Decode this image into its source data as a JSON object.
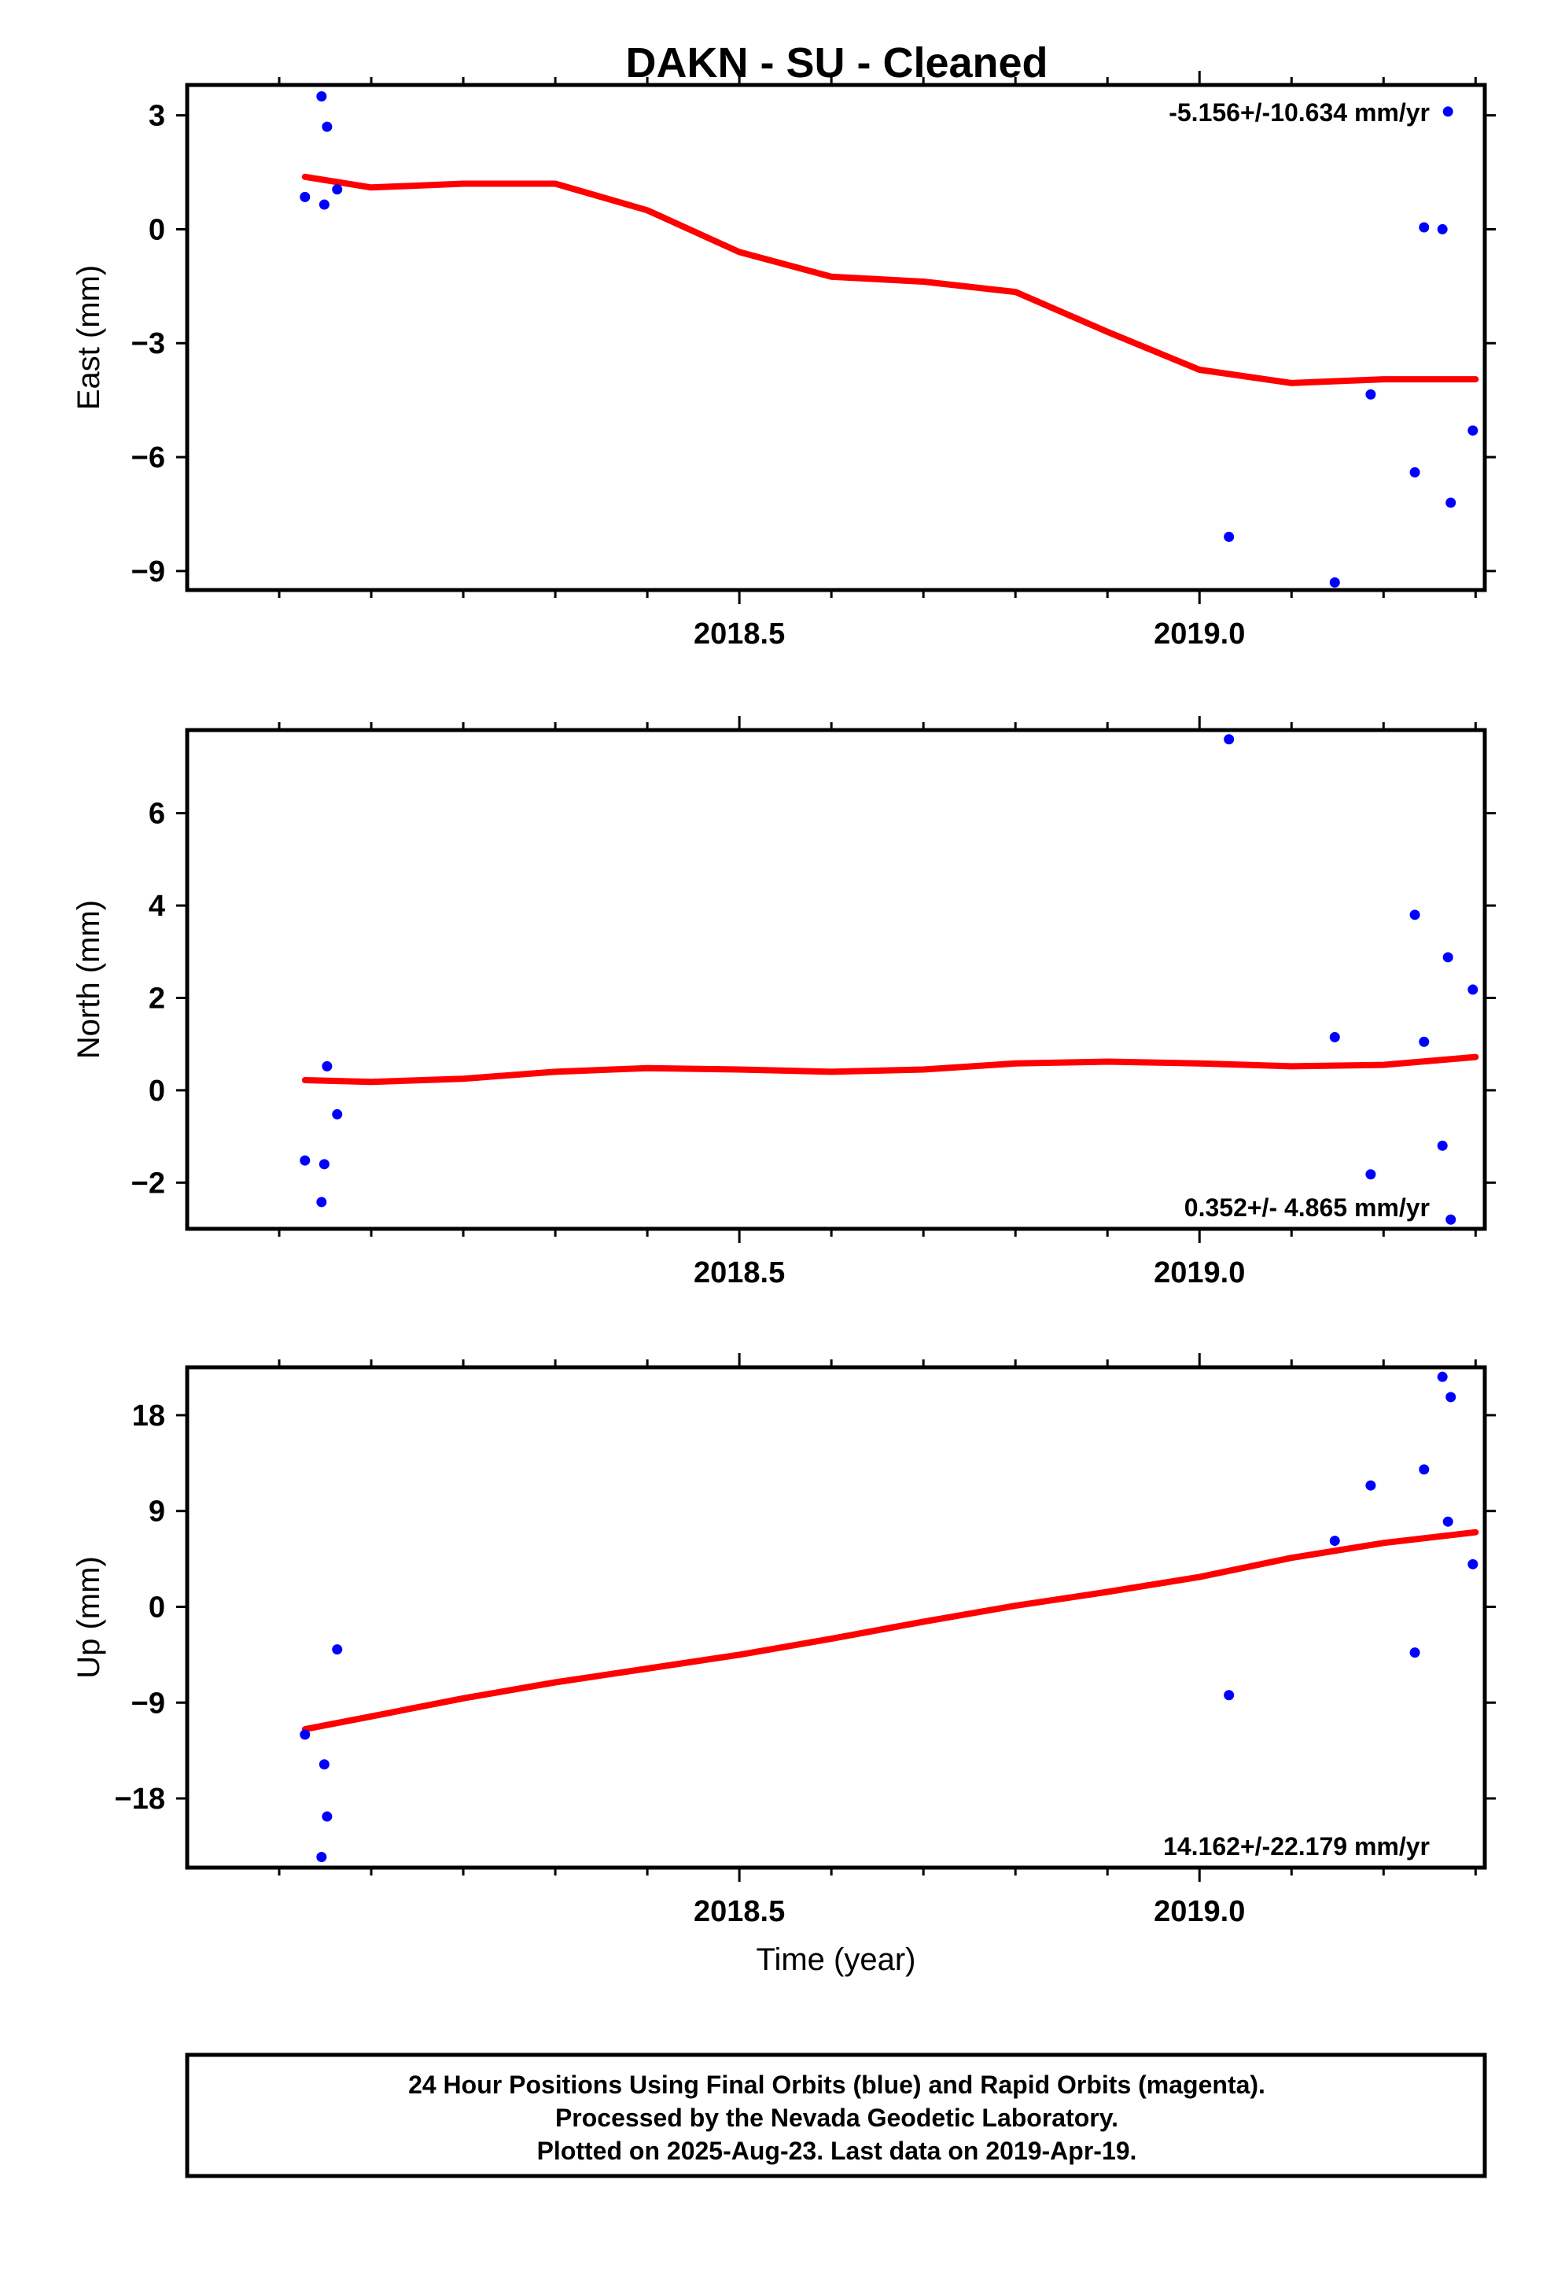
{
  "title": "DAKN  - SU - Cleaned",
  "colors": {
    "data_points": "#0000ff",
    "fit_line": "#ff0000",
    "frame": "#000000"
  },
  "chart_data": [
    {
      "type": "scatter",
      "panel": "east",
      "ylabel": "East (mm)",
      "xlabel": "",
      "xlim": [
        2017.9,
        2019.31
      ],
      "ylim": [
        -9.5,
        3.8
      ],
      "yticks": [
        3,
        0,
        -3,
        -6,
        -9
      ],
      "ytick_labels": [
        "3",
        "0",
        "−3",
        "−6",
        "−9"
      ],
      "xticks": [
        2018.5,
        2019.0
      ],
      "xtick_labels": [
        "2018.5",
        "2019.0"
      ],
      "grid": false,
      "rate_text": "-5.156+/-10.634 mm/yr",
      "rate_position": "top-right",
      "points": {
        "x": [
          2018.028,
          2018.046,
          2018.049,
          2018.052,
          2018.063,
          2019.032,
          2019.147,
          2019.186,
          2019.234,
          2019.244,
          2019.264,
          2019.27,
          2019.273,
          2019.297
        ],
        "y": [
          0.85,
          3.5,
          0.65,
          2.7,
          1.05,
          -8.1,
          -9.3,
          -4.35,
          -6.4,
          0.05,
          0.0,
          3.1,
          -7.2,
          -5.3
        ]
      },
      "fit": {
        "x": [
          2018.028,
          2018.1,
          2018.2,
          2018.3,
          2018.4,
          2018.5,
          2018.6,
          2018.7,
          2018.8,
          2018.9,
          2019.0,
          2019.1,
          2019.2,
          2019.3
        ],
        "y": [
          1.38,
          1.1,
          1.2,
          1.2,
          0.5,
          -0.6,
          -1.25,
          -1.38,
          -1.65,
          -2.7,
          -3.7,
          -4.05,
          -3.95,
          -3.95
        ]
      }
    },
    {
      "type": "scatter",
      "panel": "north",
      "ylabel": "North (mm)",
      "xlabel": "",
      "xlim": [
        2017.9,
        2019.31
      ],
      "ylim": [
        -3.0,
        7.8
      ],
      "yticks": [
        6,
        4,
        2,
        0,
        -2
      ],
      "ytick_labels": [
        "6",
        "4",
        "2",
        "0",
        "−2"
      ],
      "xticks": [
        2018.5,
        2019.0
      ],
      "xtick_labels": [
        "2018.5",
        "2019.0"
      ],
      "grid": false,
      "rate_text": "0.352+/- 4.865 mm/yr",
      "rate_position": "bottom-right",
      "points": {
        "x": [
          2018.028,
          2018.046,
          2018.049,
          2018.052,
          2018.063,
          2019.032,
          2019.147,
          2019.186,
          2019.234,
          2019.244,
          2019.264,
          2019.27,
          2019.273,
          2019.297
        ],
        "y": [
          -1.52,
          -2.42,
          -1.6,
          0.52,
          -0.52,
          7.6,
          1.15,
          -1.82,
          3.8,
          1.05,
          -1.2,
          2.88,
          -2.8,
          2.18
        ]
      },
      "fit": {
        "x": [
          2018.028,
          2018.1,
          2018.2,
          2018.3,
          2018.4,
          2018.5,
          2018.6,
          2018.7,
          2018.8,
          2018.9,
          2019.0,
          2019.1,
          2019.2,
          2019.3
        ],
        "y": [
          0.22,
          0.18,
          0.25,
          0.4,
          0.48,
          0.45,
          0.4,
          0.45,
          0.58,
          0.62,
          0.58,
          0.52,
          0.55,
          0.72
        ]
      }
    },
    {
      "type": "scatter",
      "panel": "up",
      "ylabel": "Up (mm)",
      "xlabel": "Time (year)",
      "xlim": [
        2017.9,
        2019.31
      ],
      "ylim": [
        -24.5,
        22.5
      ],
      "yticks": [
        18,
        9,
        0,
        -9,
        -18
      ],
      "ytick_labels": [
        "18",
        "9",
        "0",
        "−9",
        "−18"
      ],
      "xticks": [
        2018.5,
        2019.0
      ],
      "xtick_labels": [
        "2018.5",
        "2019.0"
      ],
      "grid": false,
      "rate_text": "14.162+/-22.179 mm/yr",
      "rate_position": "bottom-right",
      "points": {
        "x": [
          2018.028,
          2018.046,
          2018.049,
          2018.052,
          2018.063,
          2019.032,
          2019.147,
          2019.186,
          2019.234,
          2019.244,
          2019.264,
          2019.27,
          2019.273,
          2019.297
        ],
        "y": [
          -12.0,
          -23.5,
          -14.8,
          -19.7,
          -4.0,
          -8.3,
          6.2,
          11.4,
          -4.3,
          12.9,
          21.6,
          8.0,
          19.7,
          4.0
        ]
      },
      "fit": {
        "x": [
          2018.028,
          2018.1,
          2018.2,
          2018.3,
          2018.4,
          2018.5,
          2018.6,
          2018.7,
          2018.8,
          2018.9,
          2019.0,
          2019.1,
          2019.2,
          2019.3
        ],
        "y": [
          -11.5,
          -10.3,
          -8.6,
          -7.1,
          -5.8,
          -4.5,
          -3.0,
          -1.4,
          0.1,
          1.4,
          2.8,
          4.6,
          6.0,
          7.0
        ]
      }
    }
  ],
  "footer": {
    "line1": "24 Hour Positions Using Final Orbits (blue) and Rapid Orbits (magenta).",
    "line2": "Processed by the Nevada Geodetic Laboratory.",
    "line3": "Plotted on 2025-Aug-23. Last data on 2019-Apr-19."
  }
}
